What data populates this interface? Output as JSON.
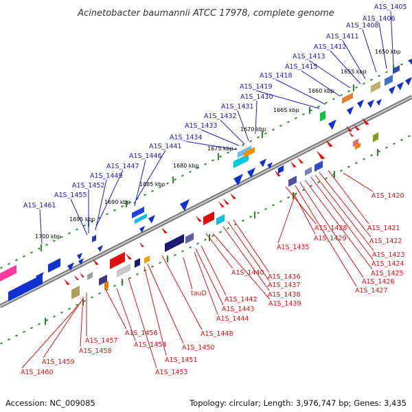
{
  "title": "Acinetobacter baumannii ATCC 17978, complete genome",
  "footer": {
    "accession": "Accession: NC_009085",
    "stats": "Topology: circular; Length: 3,976,747 bp; Genes: 3,435"
  },
  "colors": {
    "top_label": "#1a1acc",
    "bottom_label": "#e01010",
    "forward_gene": "#1030d0",
    "reverse_gene": "#e01010",
    "backbone": "#8a8a8a",
    "tick": "#2a8a2a"
  },
  "kbp_marks": [
    "1650 kbp",
    "1655 kbp",
    "1660 kbp",
    "1665 kbp",
    "1670 kbp",
    "1675 kbp",
    "1680 kbp",
    "1685 kbp",
    "1690 kbp",
    "1695 kbp",
    "1700 kbp"
  ],
  "top_genes": [
    "A1S_1405",
    "A1S_1406",
    "A1S_1408",
    "A1S_1411",
    "A1S_1412",
    "A1S_1413",
    "A1S_1415",
    "A1S_1418",
    "A1S_1419",
    "A1S_1430",
    "A1S_1431",
    "A1S_1432",
    "A1S_1433",
    "A1S_1434",
    "A1S_1441",
    "A1S_1446",
    "A1S_1447",
    "A1S_1449",
    "A1S_1452",
    "A1S_1455",
    "A1S_1461"
  ],
  "bottom_genes": [
    "A1S_1420",
    "A1S_1421",
    "A1S_1422",
    "A1S_1423",
    "A1S_1424",
    "A1S_1425",
    "A1S_1426",
    "A1S_1427",
    "A1S_1428",
    "A1S_1429",
    "A1S_1435",
    "A1S_1436",
    "A1S_1437",
    "A1S_1438",
    "A1S_1439",
    "A1S_1440",
    "A1S_1442",
    "A1S_1443",
    "A1S_1444",
    "tauD",
    "A1S_1448",
    "A1S_1450",
    "A1S_1451",
    "A1S_1453",
    "A1S_1454",
    "A1S_1456",
    "A1S_1457",
    "A1S_1458",
    "A1S_1459",
    "A1S_1460"
  ]
}
